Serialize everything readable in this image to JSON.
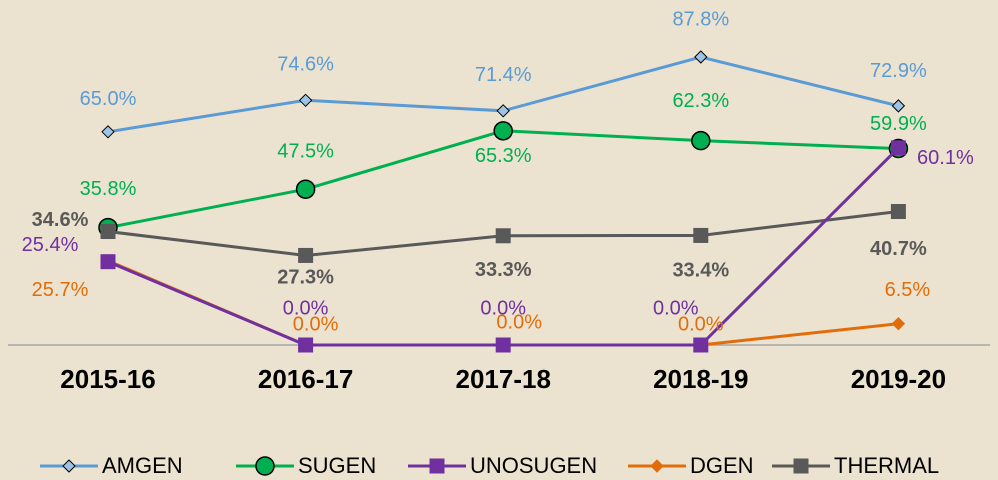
{
  "chart_data": {
    "type": "line",
    "categories": [
      "2015-16",
      "2016-17",
      "2017-18",
      "2018-19",
      "2019-20"
    ],
    "ylim": [
      0,
      100
    ],
    "legend": "bottom",
    "series": [
      {
        "name": "AMGEN",
        "color": "#5b9bd5",
        "marker": "diamond",
        "values": [
          65.0,
          74.6,
          71.4,
          87.8,
          72.9
        ],
        "value_labels": [
          "65.0%",
          "74.6%",
          "71.4%",
          "87.8%",
          "72.9%"
        ]
      },
      {
        "name": "SUGEN",
        "color": "#00b050",
        "marker": "circle",
        "values": [
          35.8,
          47.5,
          65.3,
          62.3,
          59.9
        ],
        "value_labels": [
          "35.8%",
          "47.5%",
          "65.3%",
          "62.3%",
          "59.9%"
        ]
      },
      {
        "name": "UNOSUGEN",
        "color": "#7030a0",
        "marker": "square",
        "values": [
          25.4,
          0.0,
          0.0,
          0.0,
          60.1
        ],
        "value_labels": [
          "25.4%",
          "0.0%",
          "0.0%",
          "0.0%",
          "60.1%"
        ]
      },
      {
        "name": "DGEN",
        "color": "#e36c0a",
        "marker": "diamond",
        "values": [
          25.7,
          0.0,
          0.0,
          0.0,
          6.5
        ],
        "value_labels": [
          "25.7%",
          "0.0%",
          "0.0%",
          "0.0%",
          "6.5%"
        ]
      },
      {
        "name": "THERMAL",
        "color": "#595959",
        "marker": "square",
        "values": [
          34.6,
          27.3,
          33.3,
          33.4,
          40.7
        ],
        "value_labels": [
          "34.6%",
          "27.3%",
          "33.3%",
          "33.4%",
          "40.7%"
        ]
      }
    ]
  }
}
